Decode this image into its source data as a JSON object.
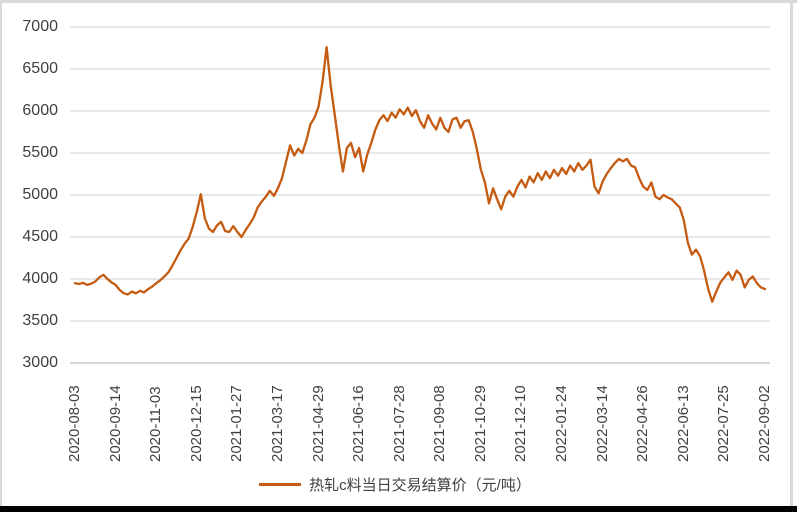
{
  "window": {
    "background": "#FFFFFF",
    "border_color": "#D9D9D9",
    "bottom_bar_color": "#000000"
  },
  "chart_data": {
    "type": "line",
    "title": "",
    "legend": "热轧c料当日交易结算价（元/吨）",
    "series_color": "#C55A11",
    "gridline_color": "#D9D9D9",
    "axis_line_color": "#BFBFBF",
    "label_color": "#404040",
    "grid": "horizontal-on",
    "legend_position": "bottom-center",
    "ylim": [
      3000,
      7000
    ],
    "y_ticks": [
      3000,
      3500,
      4000,
      4500,
      5000,
      5500,
      6000,
      6500,
      7000
    ],
    "x_range": [
      "2020-08-03",
      "2022-09-02"
    ],
    "x_tick_labels": [
      "2020-08-03",
      "2020-09-14",
      "2020-11-03",
      "2020-12-15",
      "2021-01-27",
      "2021-03-17",
      "2021-04-29",
      "2021-06-16",
      "2021-07-28",
      "2021-09-08",
      "2021-10-29",
      "2021-12-10",
      "2022-01-24",
      "2022-03-14",
      "2022-04-26",
      "2022-06-13",
      "2022-07-25",
      "2022-09-02"
    ],
    "x_ticks_every_n_points": 10,
    "values": [
      3950,
      3940,
      3955,
      3930,
      3945,
      3970,
      4020,
      4050,
      4000,
      3960,
      3930,
      3870,
      3830,
      3815,
      3850,
      3830,
      3860,
      3840,
      3880,
      3910,
      3950,
      3985,
      4030,
      4080,
      4160,
      4250,
      4340,
      4420,
      4480,
      4620,
      4800,
      5010,
      4720,
      4600,
      4560,
      4640,
      4680,
      4570,
      4560,
      4630,
      4560,
      4500,
      4580,
      4650,
      4730,
      4850,
      4920,
      4980,
      5050,
      4990,
      5080,
      5200,
      5400,
      5590,
      5470,
      5550,
      5500,
      5650,
      5840,
      5920,
      6050,
      6350,
      6760,
      6300,
      5950,
      5600,
      5280,
      5560,
      5620,
      5450,
      5560,
      5280,
      5480,
      5620,
      5780,
      5890,
      5950,
      5880,
      5980,
      5920,
      6020,
      5960,
      6040,
      5940,
      6010,
      5880,
      5800,
      5950,
      5850,
      5780,
      5920,
      5800,
      5750,
      5900,
      5920,
      5800,
      5880,
      5890,
      5750,
      5550,
      5300,
      5150,
      4900,
      5080,
      4950,
      4830,
      4980,
      5050,
      4980,
      5100,
      5180,
      5090,
      5220,
      5150,
      5260,
      5180,
      5280,
      5200,
      5300,
      5230,
      5320,
      5250,
      5350,
      5280,
      5380,
      5300,
      5350,
      5420,
      5100,
      5020,
      5160,
      5250,
      5320,
      5380,
      5430,
      5400,
      5430,
      5350,
      5330,
      5200,
      5100,
      5060,
      5150,
      4980,
      4950,
      5000,
      4970,
      4950,
      4900,
      4850,
      4700,
      4430,
      4290,
      4350,
      4270,
      4100,
      3880,
      3730,
      3850,
      3960,
      4020,
      4080,
      3990,
      4100,
      4050,
      3900,
      3990,
      4030,
      3950,
      3900,
      3880
    ]
  }
}
